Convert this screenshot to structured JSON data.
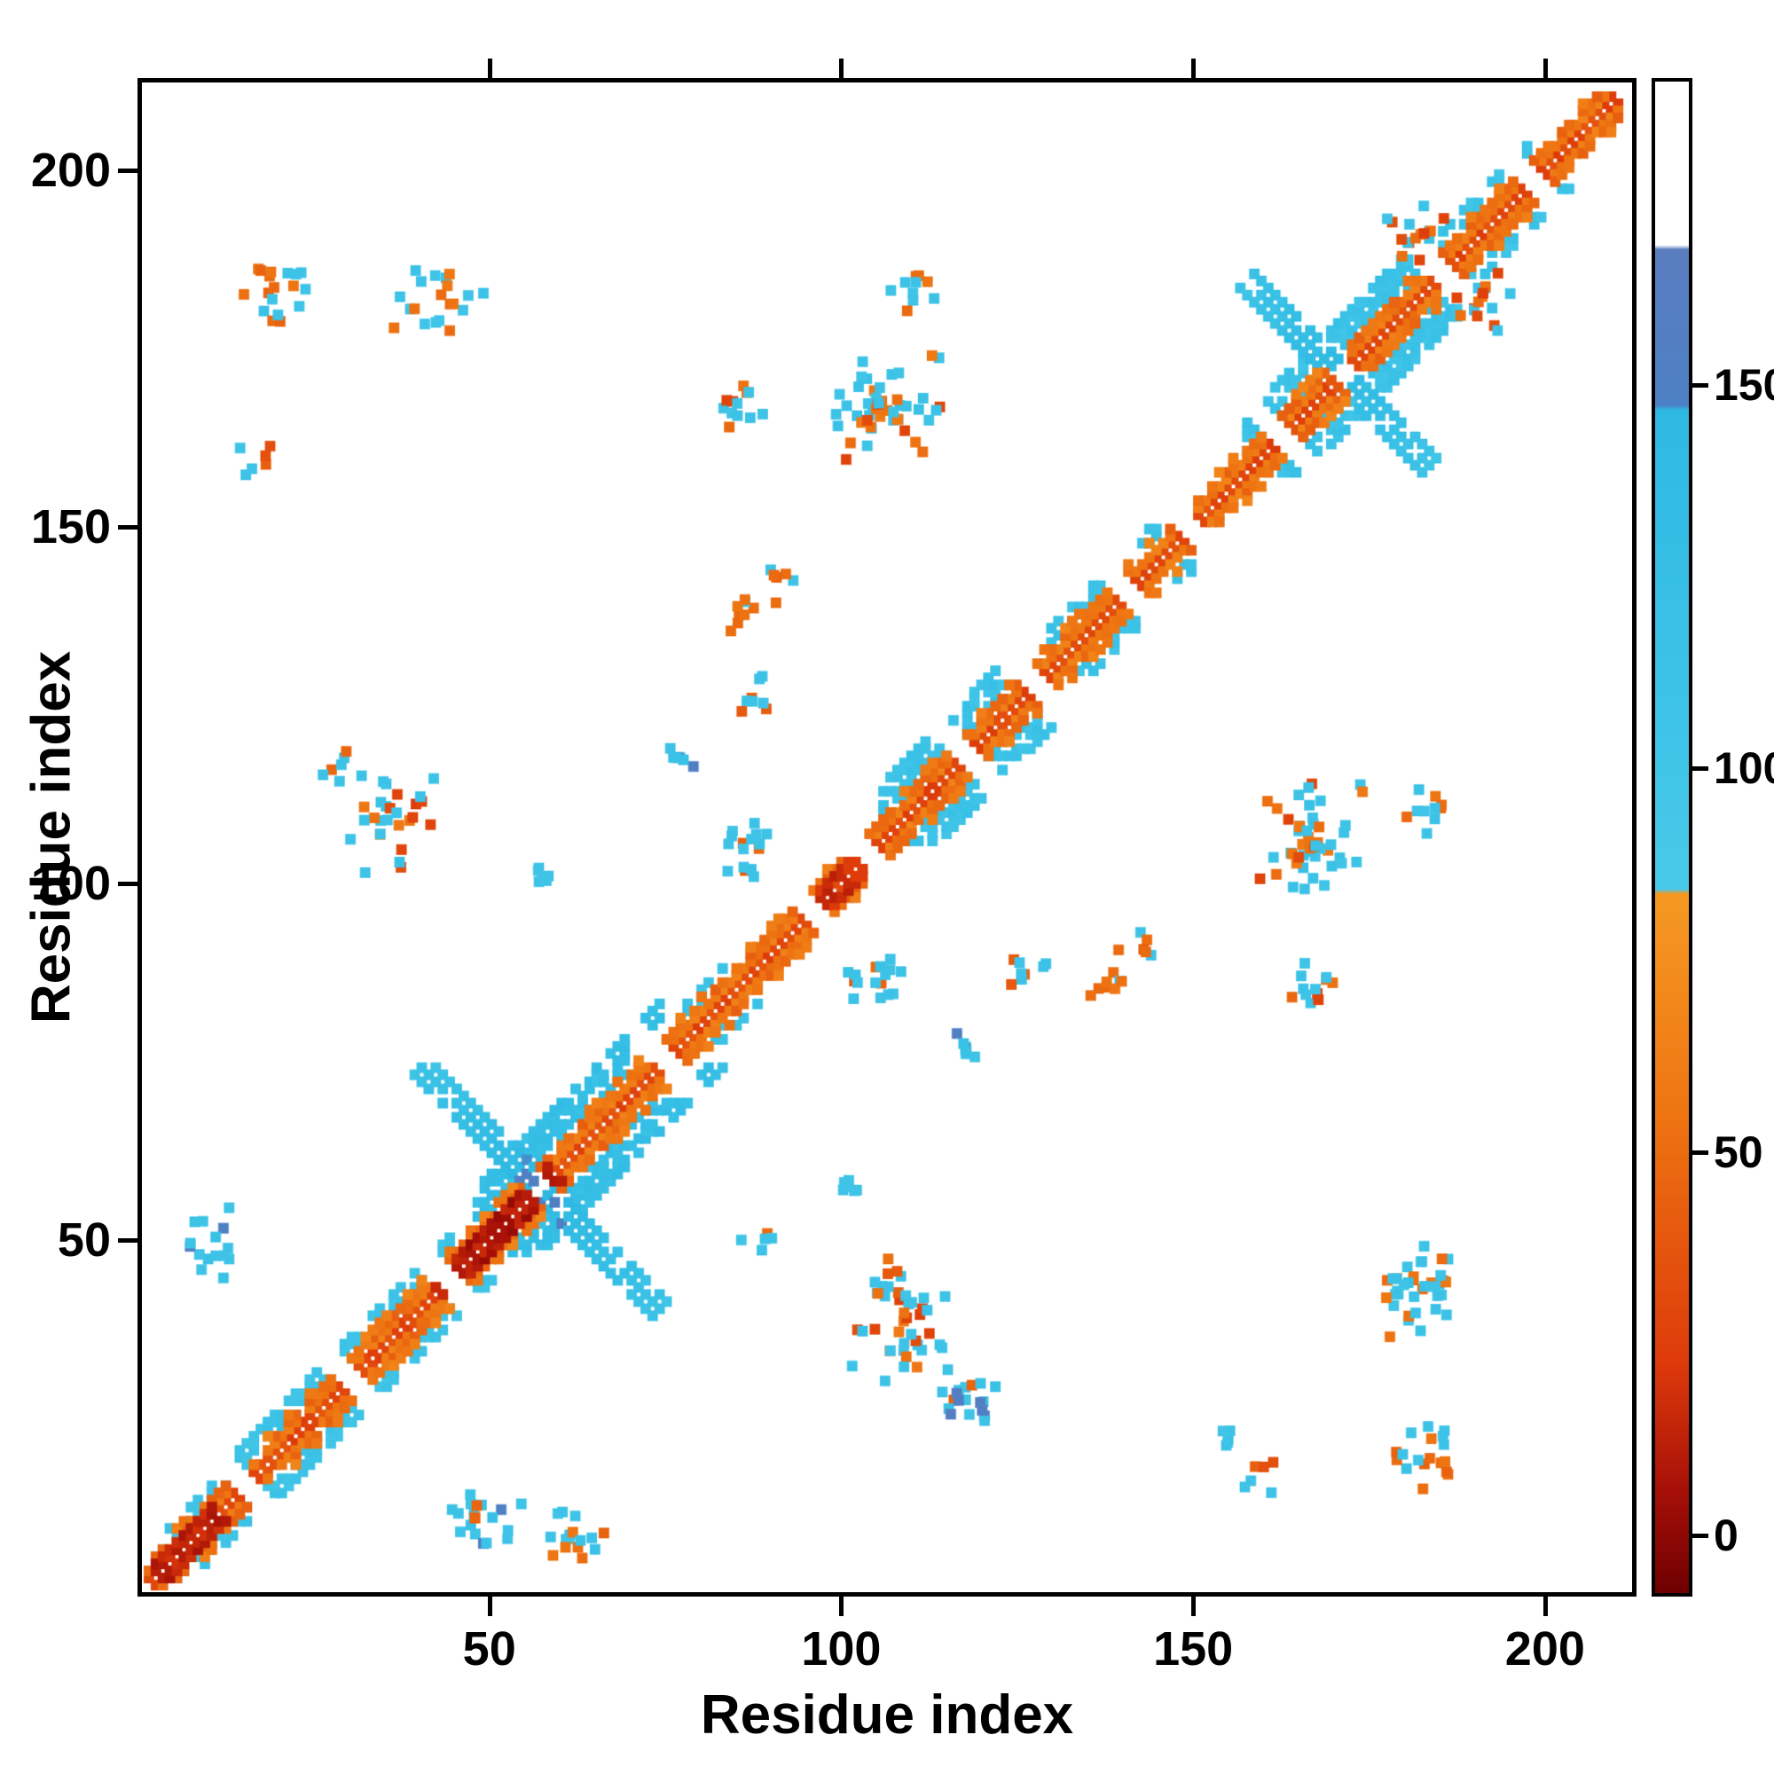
{
  "figure": {
    "title": "",
    "xlabel": "Residue index",
    "ylabel": "Residue index"
  },
  "chart_data": {
    "type": "heatmap",
    "title": "",
    "xlabel": "Residue index",
    "ylabel": "Residue index",
    "xlim": [
      0,
      213
    ],
    "ylim": [
      0,
      213
    ],
    "xticks": [
      50,
      100,
      150,
      200
    ],
    "yticks": [
      50,
      100,
      150,
      200
    ],
    "grid": false,
    "legend": "colorbar-right",
    "seed": 12,
    "colorbar": {
      "label": "",
      "ticks": [
        0,
        50,
        100,
        150
      ],
      "vmin": -8,
      "vmax": 190,
      "stops": [
        [
          -8,
          "#6e0000"
        ],
        [
          5,
          "#a50f08"
        ],
        [
          22,
          "#dd3a0a"
        ],
        [
          55,
          "#ee7512"
        ],
        [
          83,
          "#f59822"
        ],
        [
          83.6,
          "#f59822"
        ],
        [
          84.2,
          "#48c9e8"
        ],
        [
          120,
          "#38c0e6"
        ],
        [
          147,
          "#2fb9e2"
        ],
        [
          147.6,
          "#4d80c4"
        ],
        [
          168,
          "#5a7ec0"
        ],
        [
          168.6,
          "#ffffff"
        ],
        [
          190,
          "#ffffff"
        ]
      ]
    },
    "diag_gaps": [
      15,
      30,
      44,
      57,
      75,
      96,
      104,
      118,
      128,
      141,
      150,
      163,
      172,
      186,
      199
    ],
    "diag_bands": [
      {
        "from": 1,
        "to": 211,
        "off_min": 1,
        "off_max": 1,
        "v": 30,
        "density": 1.0
      },
      {
        "from": 1,
        "to": 211,
        "off_min": 2,
        "off_max": 2,
        "v": 58,
        "density": 0.95
      },
      {
        "from": 1,
        "to": 211,
        "off_min": 3,
        "off_max": 3,
        "v": 50,
        "density": 0.75
      },
      {
        "from": 1,
        "to": 211,
        "off_min": 4,
        "off_max": 4,
        "v": 60,
        "density": 0.3
      },
      {
        "from": 42,
        "to": 58,
        "off_min": 1,
        "off_max": 2,
        "v": 8,
        "density": 1.0
      },
      {
        "from": 2,
        "to": 10,
        "off_min": 1,
        "off_max": 2,
        "v": 12,
        "density": 1.0
      },
      {
        "from": 96,
        "to": 103,
        "off_min": 1,
        "off_max": 2,
        "v": 18,
        "density": 0.9
      }
    ],
    "flank_bands": [
      {
        "from": 2,
        "to": 12,
        "off_min": 3,
        "off_max": 5,
        "v": 108,
        "density": 0.4
      },
      {
        "from": 14,
        "to": 44,
        "off_min": 3,
        "off_max": 6,
        "v": 108,
        "density": 0.55
      },
      {
        "from": 48,
        "to": 74,
        "off_min": 4,
        "off_max": 9,
        "v": 126,
        "density": 0.6
      },
      {
        "from": 76,
        "to": 86,
        "off_min": 3,
        "off_max": 5,
        "v": 108,
        "density": 0.3
      },
      {
        "from": 106,
        "to": 126,
        "off_min": 3,
        "off_max": 8,
        "v": 112,
        "density": 0.6
      },
      {
        "from": 130,
        "to": 146,
        "off_min": 4,
        "off_max": 6,
        "v": 108,
        "density": 0.4
      },
      {
        "from": 158,
        "to": 184,
        "off_min": 3,
        "off_max": 8,
        "v": 112,
        "density": 0.6
      },
      {
        "from": 186,
        "to": 198,
        "off_min": 4,
        "off_max": 6,
        "v": 108,
        "density": 0.4
      }
    ],
    "cross_arms": [
      {
        "cx": 57,
        "cy": 57,
        "half": 17,
        "width": 1,
        "v_center": 152,
        "v_tip": 108
      },
      {
        "cx": 171,
        "cy": 172,
        "half": 13,
        "width": 1,
        "v_center": 140,
        "v_tip": 108
      }
    ],
    "clusters": [
      {
        "cx": 20,
        "cy": 184,
        "rx": 8,
        "ry": 5,
        "n": 18,
        "vals": [
          50,
          108,
          108,
          25
        ],
        "sym": true
      },
      {
        "cx": 42,
        "cy": 182,
        "rx": 7,
        "ry": 6,
        "n": 20,
        "vals": [
          108,
          55,
          108
        ],
        "sym": true
      },
      {
        "cx": 16,
        "cy": 159,
        "rx": 3,
        "ry": 3,
        "n": 6,
        "vals": [
          40,
          108
        ],
        "sym": true
      },
      {
        "cx": 10,
        "cy": 49,
        "rx": 4,
        "ry": 6,
        "n": 15,
        "vals": [
          108,
          115,
          155
        ],
        "sym": true
      },
      {
        "cx": 36,
        "cy": 110,
        "rx": 8,
        "ry": 9,
        "n": 28,
        "vals": [
          108,
          112,
          55,
          30
        ],
        "sym": true
      },
      {
        "cx": 28,
        "cy": 117,
        "rx": 3,
        "ry": 3,
        "n": 6,
        "vals": [
          45,
          108
        ],
        "sym": true
      },
      {
        "cx": 57,
        "cy": 100,
        "rx": 3,
        "ry": 3,
        "n": 6,
        "vals": [
          108
        ],
        "sym": true
      },
      {
        "cx": 85,
        "cy": 168,
        "rx": 4,
        "ry": 5,
        "n": 12,
        "vals": [
          50,
          30,
          108
        ],
        "sym": true
      },
      {
        "cx": 104,
        "cy": 167,
        "rx": 6,
        "ry": 6,
        "n": 20,
        "vals": [
          108,
          112,
          55
        ],
        "sym": true
      },
      {
        "cx": 92,
        "cy": 142,
        "rx": 3,
        "ry": 3,
        "n": 6,
        "vals": [
          108,
          45
        ],
        "sym": true
      },
      {
        "cx": 88,
        "cy": 127,
        "rx": 3,
        "ry": 4,
        "n": 8,
        "vals": [
          108,
          45
        ],
        "sym": true
      },
      {
        "cx": 105,
        "cy": 86,
        "rx": 6,
        "ry": 4,
        "n": 16,
        "vals": [
          108,
          112,
          45
        ],
        "sym": true
      },
      {
        "cx": 118,
        "cy": 77,
        "rx": 3,
        "ry": 3,
        "n": 7,
        "vals": [
          112,
          155
        ],
        "sym": true
      },
      {
        "cx": 137,
        "cy": 86,
        "rx": 4,
        "ry": 3,
        "n": 8,
        "vals": [
          52,
          45,
          108
        ],
        "sym": true
      },
      {
        "cx": 167,
        "cy": 108,
        "rx": 9,
        "ry": 8,
        "n": 28,
        "vals": [
          108,
          55,
          112,
          30
        ],
        "sym": true
      },
      {
        "cx": 184,
        "cy": 110,
        "rx": 4,
        "ry": 4,
        "n": 10,
        "vals": [
          108,
          50
        ],
        "sym": true
      },
      {
        "cx": 192,
        "cy": 182,
        "rx": 5,
        "ry": 5,
        "n": 14,
        "vals": [
          52,
          108,
          30
        ],
        "sym": true
      },
      {
        "cx": 62,
        "cy": 8,
        "rx": 6,
        "ry": 4,
        "n": 16,
        "vals": [
          108,
          112,
          50
        ],
        "sym": false
      },
      {
        "cx": 119,
        "cy": 27,
        "rx": 4,
        "ry": 4,
        "n": 12,
        "vals": [
          108,
          155,
          112
        ],
        "sym": false
      },
      {
        "cx": 156,
        "cy": 22,
        "rx": 3,
        "ry": 2,
        "n": 5,
        "vals": [
          108
        ],
        "sym": false
      },
      {
        "cx": 182,
        "cy": 44,
        "rx": 6,
        "ry": 6,
        "n": 18,
        "vals": [
          108,
          52,
          112
        ],
        "sym": false
      },
      {
        "cx": 88,
        "cy": 50,
        "rx": 3,
        "ry": 2,
        "n": 5,
        "vals": [
          108,
          45
        ],
        "sym": false
      },
      {
        "cx": 47,
        "cy": 12,
        "rx": 3,
        "ry": 2,
        "n": 5,
        "vals": [
          45,
          108
        ],
        "sym": false
      },
      {
        "cx": 109,
        "cy": 43,
        "rx": 6,
        "ry": 5,
        "n": 16,
        "vals": [
          52,
          108,
          45
        ],
        "sym": false
      }
    ]
  }
}
